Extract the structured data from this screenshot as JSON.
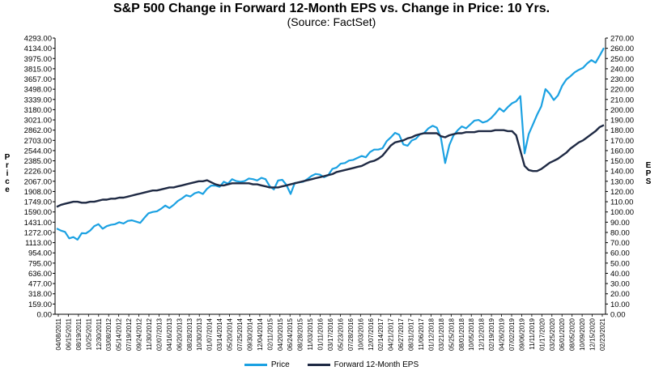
{
  "chart_data": {
    "type": "line",
    "title": "S&P 500 Change in Forward 12-Month EPS vs. Change in Price: 10 Yrs.",
    "subtitle": "(Source: FactSet)",
    "ylabel_left": "Price",
    "ylabel_right": "EPS",
    "left_axis": {
      "min": 0,
      "max": 4293,
      "ticks": [
        "4293.00",
        "4134.00",
        "3975.00",
        "3815.00",
        "3657.00",
        "3498.00",
        "3339.00",
        "3180.00",
        "3021.00",
        "2862.00",
        "2703.00",
        "2544.00",
        "2385.00",
        "2226.00",
        "2067.00",
        "1908.00",
        "1749.00",
        "1590.00",
        "1431.00",
        "1272.00",
        "1113.00",
        "954.00",
        "795.00",
        "636.00",
        "477.00",
        "318.00",
        "159.00",
        "0.00"
      ]
    },
    "right_axis": {
      "min": 0,
      "max": 270,
      "ticks": [
        "270.00",
        "260.00",
        "250.00",
        "240.00",
        "230.00",
        "220.00",
        "210.00",
        "200.00",
        "190.00",
        "180.00",
        "170.00",
        "160.00",
        "150.00",
        "140.00",
        "130.00",
        "120.00",
        "110.00",
        "100.00",
        "90.00",
        "80.00",
        "70.00",
        "60.00",
        "50.00",
        "40.00",
        "30.00",
        "20.00",
        "10.00",
        "0.00"
      ]
    },
    "x_tick_labels": [
      "04/08/2011",
      "06/15/2011",
      "08/19/2011",
      "10/25/2011",
      "12/30/2011",
      "03/08/2012",
      "05/14/2012",
      "07/19/2012",
      "09/24/2012",
      "11/30/2012",
      "02/07/2013",
      "04/16/2013",
      "06/20/2013",
      "08/28/2013",
      "10/30/2013",
      "01/07/2014",
      "03/14/2014",
      "05/20/2014",
      "07/25/2014",
      "09/30/2014",
      "12/04/2014",
      "02/11/2015",
      "04/20/2015",
      "06/24/2015",
      "08/28/2015",
      "11/03/2015",
      "01/11/2016",
      "03/17/2016",
      "05/23/2016",
      "07/28/2016",
      "10/03/2016",
      "12/07/2016",
      "02/14/2017",
      "04/21/2017",
      "06/27/2017",
      "08/31/2017",
      "11/06/2017",
      "01/12/2018",
      "03/21/2018",
      "05/25/2018",
      "08/01/2018",
      "10/05/2018",
      "12/12/2018",
      "02/19/2019",
      "04/26/2019",
      "07/02/2019",
      "09/06/2019",
      "11/11/2019",
      "01/17/2020",
      "03/25/2020",
      "06/01/2020",
      "08/05/2020",
      "10/09/2020",
      "12/15/2020",
      "02/23/2021"
    ],
    "series": [
      {
        "name": "Price",
        "color": "#1BA1E2",
        "values": [
          1333,
          1300,
          1280,
          1180,
          1200,
          1160,
          1260,
          1257,
          1300,
          1370,
          1400,
          1330,
          1370,
          1390,
          1400,
          1430,
          1410,
          1450,
          1460,
          1440,
          1420,
          1500,
          1570,
          1590,
          1600,
          1640,
          1690,
          1650,
          1700,
          1760,
          1800,
          1850,
          1830,
          1880,
          1900,
          1870,
          1950,
          2000,
          2000,
          1980,
          2060,
          2030,
          2100,
          2070,
          2060,
          2070,
          2110,
          2100,
          2080,
          2120,
          2100,
          1990,
          1940,
          2080,
          2090,
          2010,
          1870,
          2040,
          2050,
          2060,
          2100,
          2150,
          2180,
          2170,
          2130,
          2160,
          2260,
          2280,
          2340,
          2350,
          2390,
          2400,
          2430,
          2460,
          2440,
          2520,
          2560,
          2560,
          2580,
          2690,
          2750,
          2820,
          2790,
          2640,
          2620,
          2700,
          2730,
          2800,
          2820,
          2890,
          2930,
          2900,
          2740,
          2350,
          2630,
          2780,
          2860,
          2920,
          2890,
          2950,
          3010,
          3020,
          2980,
          3000,
          3050,
          3120,
          3200,
          3150,
          3220,
          3280,
          3310,
          3390,
          2500,
          2800,
          2950,
          3100,
          3230,
          3500,
          3430,
          3330,
          3400,
          3550,
          3650,
          3700,
          3760,
          3800,
          3830,
          3900,
          3950,
          3910,
          4020,
          4140
        ],
        "y_axis": "left"
      },
      {
        "name": "Forward 12-Month EPS",
        "color": "#1F2A44",
        "values": [
          105,
          107,
          108,
          109,
          110,
          110,
          109,
          109,
          110,
          110,
          111,
          112,
          112,
          113,
          113,
          114,
          114,
          115,
          116,
          117,
          118,
          119,
          120,
          121,
          121,
          122,
          123,
          124,
          124,
          125,
          126,
          127,
          128,
          129,
          130,
          130,
          131,
          129,
          127,
          126,
          126,
          127,
          128,
          128,
          128,
          128,
          128,
          127,
          127,
          126,
          125,
          124,
          124,
          124,
          125,
          126,
          127,
          128,
          129,
          130,
          131,
          132,
          133,
          134,
          135,
          136,
          137,
          139,
          140,
          141,
          142,
          143,
          144,
          145,
          147,
          149,
          150,
          152,
          155,
          160,
          165,
          168,
          169,
          170,
          172,
          173,
          175,
          176,
          177,
          177,
          177,
          177,
          174,
          173,
          175,
          176,
          177,
          177,
          178,
          178,
          178,
          179,
          179,
          179,
          179,
          180,
          180,
          180,
          179,
          179,
          175,
          160,
          145,
          141,
          140,
          140,
          142,
          145,
          148,
          150,
          152,
          155,
          158,
          162,
          165,
          168,
          170,
          173,
          176,
          179,
          183,
          185
        ],
        "y_axis": "right"
      }
    ],
    "legend_position": "bottom",
    "grid": false
  }
}
